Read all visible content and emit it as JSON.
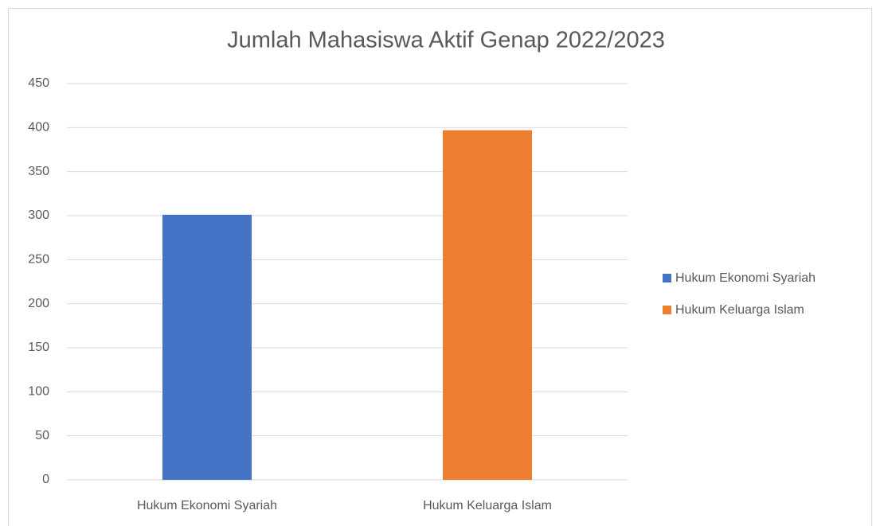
{
  "chart_data": {
    "type": "bar",
    "title": "Jumlah Mahasiswa Aktif Genap 2022/2023",
    "categories": [
      "Hukum Ekonomi Syariah",
      "Hukum Keluarga Islam"
    ],
    "values": [
      301,
      397
    ],
    "colors": [
      "#4472c4",
      "#ed7d31"
    ],
    "ylim": [
      0,
      450
    ],
    "yticks": [
      0,
      50,
      100,
      150,
      200,
      250,
      300,
      350,
      400,
      450
    ],
    "grid": true,
    "legend": "right"
  }
}
